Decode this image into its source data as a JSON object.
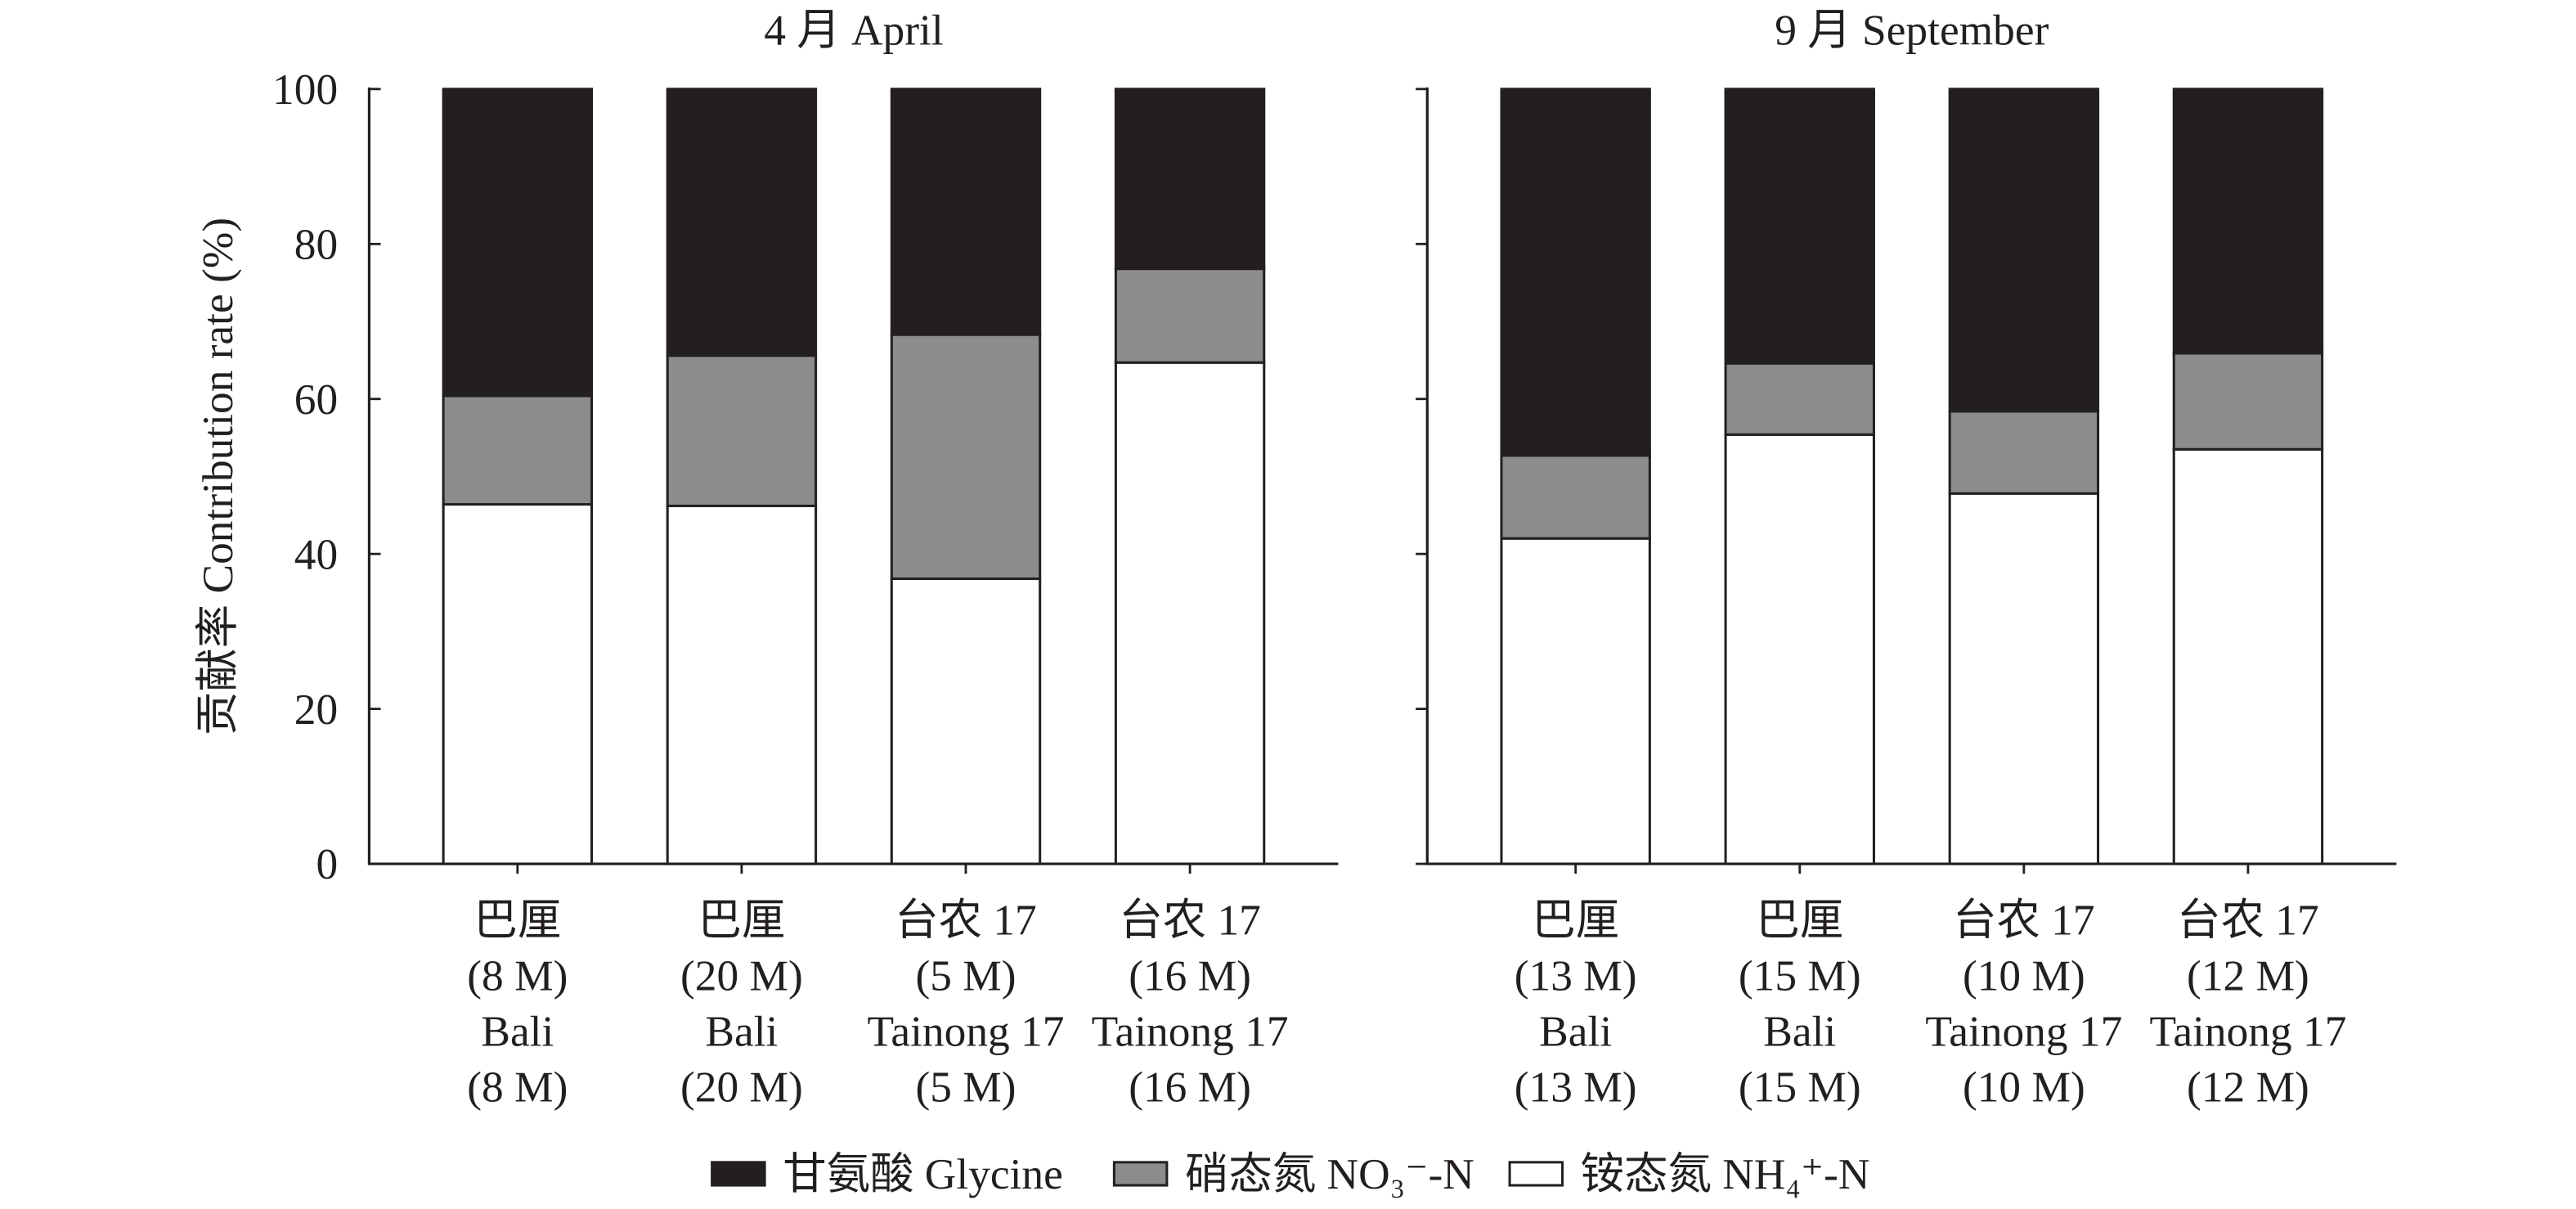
{
  "legend_position": "bottom",
  "chart_data": [
    {
      "type": "bar",
      "stacked": true,
      "title": "4 月 April",
      "ylabel": "贡献率 Contribution rate (%)",
      "ylim": [
        0,
        100
      ],
      "yticks": [
        0,
        20,
        40,
        60,
        80,
        100
      ],
      "ytick_labels": true,
      "grid": false,
      "categories": [
        [
          "巴厘",
          "(8 M)",
          "Bali",
          "(8 M)"
        ],
        [
          "巴厘",
          "(20 M)",
          "Bali",
          "(20 M)"
        ],
        [
          "台农 17",
          "(5 M)",
          "Tainong 17",
          "(5 M)"
        ],
        [
          "台农 17",
          "(16 M)",
          "Tainong 17",
          "(16 M)"
        ]
      ],
      "series": [
        {
          "name": "铵态氮 NH₄⁺-N",
          "color": "#ffffff",
          "values": [
            46.4,
            46.2,
            36.8,
            64.7
          ]
        },
        {
          "name": "硝态氮 NO₃⁻-N",
          "color": "#8c8c8c",
          "values": [
            14.0,
            19.4,
            31.5,
            12.1
          ]
        },
        {
          "name": "甘氨酸 Glycine",
          "color": "#231f20",
          "values": [
            39.6,
            34.4,
            31.7,
            23.2
          ]
        }
      ]
    },
    {
      "type": "bar",
      "stacked": true,
      "title": "9 月 September",
      "ylabel": "",
      "ylim": [
        0,
        100
      ],
      "yticks": [
        0,
        20,
        40,
        60,
        80,
        100
      ],
      "ytick_labels": false,
      "grid": false,
      "categories": [
        [
          "巴厘",
          "(13 M)",
          "Bali",
          "(13 M)"
        ],
        [
          "巴厘",
          "(15 M)",
          "Bali",
          "(15 M)"
        ],
        [
          "台农 17",
          "(10 M)",
          "Tainong 17",
          "(10 M)"
        ],
        [
          "台农 17",
          "(12 M)",
          "Tainong 17",
          "(12 M)"
        ]
      ],
      "series": [
        {
          "name": "铵态氮 NH₄⁺-N",
          "color": "#ffffff",
          "values": [
            42.0,
            55.4,
            47.8,
            53.5
          ]
        },
        {
          "name": "硝态氮 NO₃⁻-N",
          "color": "#8c8c8c",
          "values": [
            10.7,
            9.2,
            10.6,
            12.4
          ]
        },
        {
          "name": "甘氨酸 Glycine",
          "color": "#231f20",
          "values": [
            47.3,
            35.4,
            41.6,
            34.1
          ]
        }
      ]
    }
  ]
}
